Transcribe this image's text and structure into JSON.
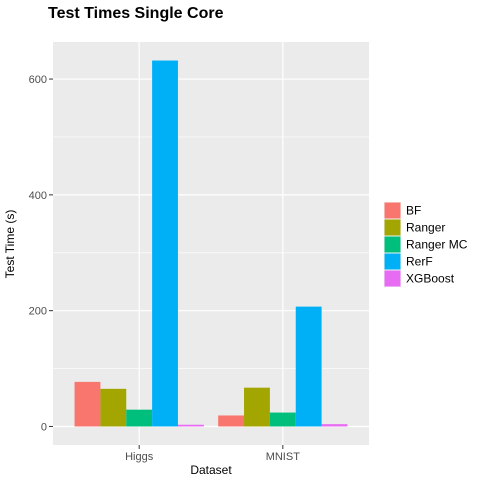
{
  "chart_data": {
    "type": "bar",
    "title": "Test Times Single Core",
    "xlabel": "Dataset",
    "ylabel": "Test Time (s)",
    "categories": [
      "Higgs",
      "MNIST"
    ],
    "series": [
      {
        "name": "BF",
        "color": "#F8766D",
        "values": [
          77,
          19
        ]
      },
      {
        "name": "Ranger",
        "color": "#A3A500",
        "values": [
          65,
          67
        ]
      },
      {
        "name": "Ranger MC",
        "color": "#00BF7D",
        "values": [
          29,
          24
        ]
      },
      {
        "name": "RerF",
        "color": "#00B0F6",
        "values": [
          632,
          207
        ]
      },
      {
        "name": "XGBoost",
        "color": "#E76BF3",
        "values": [
          3,
          4
        ]
      }
    ],
    "ylim": [
      -32,
      664
    ],
    "yticks": [
      0,
      200,
      400,
      600
    ],
    "grid": true,
    "legend_position": "right",
    "panel_background": "#EBEBEB",
    "gridline_color": "#FFFFFF"
  }
}
